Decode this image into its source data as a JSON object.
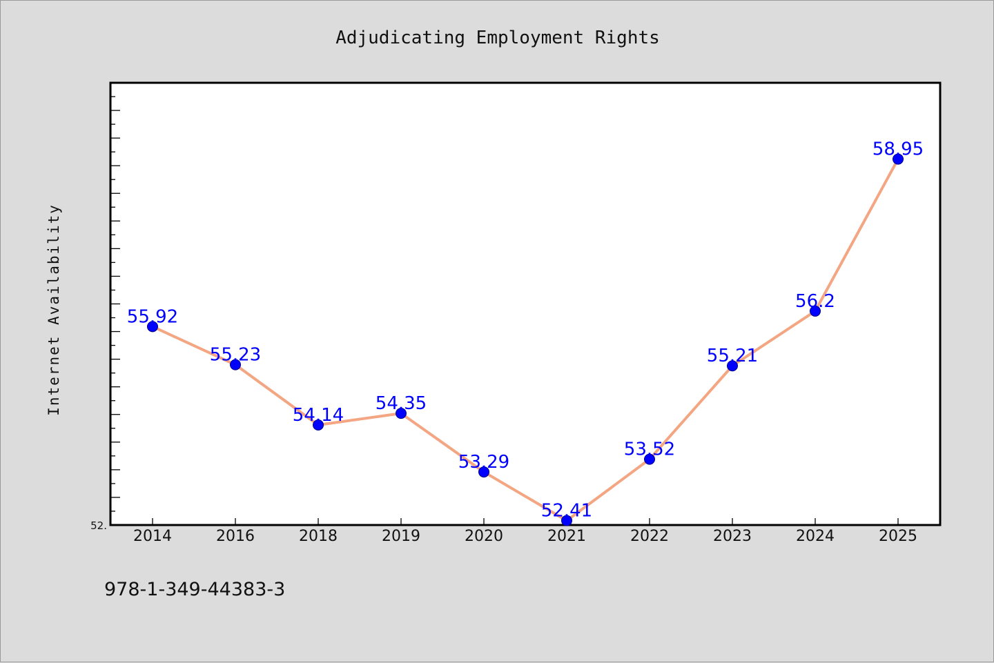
{
  "chart_data": {
    "type": "line",
    "title": "Adjudicating Employment Rights",
    "xlabel": "",
    "ylabel": "Internet Availability",
    "categories": [
      "2014",
      "2016",
      "2018",
      "2019",
      "2020",
      "2021",
      "2022",
      "2023",
      "2024",
      "2025"
    ],
    "series": [
      {
        "values": [
          55.92,
          55.23,
          54.14,
          54.35,
          53.29,
          52.41,
          53.52,
          55.21,
          56.2,
          58.95
        ],
        "labels": [
          "55.92",
          "55.23",
          "54.14",
          "54.35",
          "53.29",
          "52.41",
          "53.52",
          "55.21",
          "56.2",
          "58.95"
        ],
        "line_color": "#f4a582",
        "marker_color": "#0000ff"
      }
    ],
    "ylim": [
      52.33,
      60.33
    ],
    "y_min_label": "52.",
    "grid": false,
    "legend": "none",
    "background": "#dcdcdc",
    "plot_background": "#ffffff"
  },
  "footer": {
    "isbn": "978-1-349-44383-3"
  }
}
